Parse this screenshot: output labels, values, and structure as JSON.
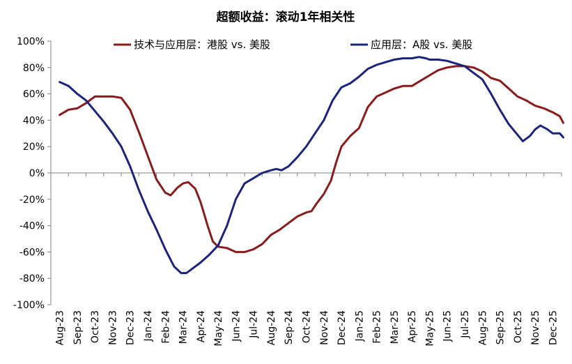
{
  "chart_data": {
    "type": "line",
    "title": "超额收益：滚动1年相关性",
    "xlabel": "",
    "ylabel": "",
    "ylim": [
      -100,
      100
    ],
    "yticks": [
      "100%",
      "80%",
      "60%",
      "40%",
      "20%",
      "0%",
      "-20%",
      "-40%",
      "-60%",
      "-80%",
      "-100%"
    ],
    "ytick_values": [
      100,
      80,
      60,
      40,
      20,
      0,
      -20,
      -40,
      -60,
      -80,
      -100
    ],
    "categories": [
      "Aug-23",
      "Sep-23",
      "Oct-23",
      "Nov-23",
      "Dec-23",
      "Jan-24",
      "Feb-24",
      "Mar-24",
      "Apr-24",
      "May-24",
      "Jun-24",
      "Jul-24",
      "Aug-24",
      "Sep-24",
      "Oct-24",
      "Nov-24",
      "Dec-24",
      "Jan-25",
      "Feb-25",
      "Mar-25",
      "Apr-25",
      "May-25",
      "Jun-25",
      "Jul-25",
      "Aug-25",
      "Sep-25",
      "Oct-25",
      "Nov-25",
      "Dec-25"
    ],
    "legend_position": "top",
    "grid": false,
    "series": [
      {
        "name": "技术与应用层：港股 vs. 美股",
        "color": "#8B1A1A",
        "points": [
          [
            0,
            44
          ],
          [
            0.5,
            48
          ],
          [
            1,
            49
          ],
          [
            1.5,
            53
          ],
          [
            2,
            58
          ],
          [
            2.5,
            58
          ],
          [
            3,
            58
          ],
          [
            3.5,
            57
          ],
          [
            4,
            48
          ],
          [
            4.5,
            31
          ],
          [
            5,
            13
          ],
          [
            5.5,
            -5
          ],
          [
            6,
            -15
          ],
          [
            6.3,
            -17
          ],
          [
            6.7,
            -11
          ],
          [
            7,
            -8
          ],
          [
            7.3,
            -7
          ],
          [
            7.7,
            -12
          ],
          [
            8,
            -22
          ],
          [
            8.4,
            -40
          ],
          [
            8.7,
            -52
          ],
          [
            9,
            -56
          ],
          [
            9.5,
            -57
          ],
          [
            10,
            -60
          ],
          [
            10.5,
            -60
          ],
          [
            11,
            -58
          ],
          [
            11.5,
            -54
          ],
          [
            12,
            -47
          ],
          [
            12.5,
            -43
          ],
          [
            13,
            -38
          ],
          [
            13.5,
            -33
          ],
          [
            14,
            -30
          ],
          [
            14.3,
            -29
          ],
          [
            14.6,
            -23
          ],
          [
            15,
            -16
          ],
          [
            15.4,
            -6
          ],
          [
            15.7,
            8
          ],
          [
            16,
            20
          ],
          [
            16.5,
            28
          ],
          [
            17,
            34
          ],
          [
            17.5,
            50
          ],
          [
            18,
            58
          ],
          [
            18.5,
            61
          ],
          [
            19,
            64
          ],
          [
            19.5,
            66
          ],
          [
            20,
            66
          ],
          [
            20.5,
            70
          ],
          [
            21,
            74
          ],
          [
            21.5,
            78
          ],
          [
            22,
            80
          ],
          [
            22.5,
            81
          ],
          [
            23,
            81
          ],
          [
            23.5,
            80
          ],
          [
            24,
            77
          ],
          [
            24.5,
            72
          ],
          [
            25,
            70
          ],
          [
            25.5,
            64
          ],
          [
            26,
            58
          ],
          [
            26.5,
            55
          ],
          [
            27,
            51
          ],
          [
            27.5,
            49
          ],
          [
            28,
            46
          ],
          [
            28.4,
            43
          ],
          [
            28.6,
            38
          ]
        ]
      },
      {
        "name": "应用层：A股 vs. 美股",
        "color": "#1A237E",
        "points": [
          [
            0,
            69
          ],
          [
            0.5,
            66
          ],
          [
            1,
            60
          ],
          [
            1.5,
            55
          ],
          [
            2,
            47
          ],
          [
            2.5,
            39
          ],
          [
            3,
            30
          ],
          [
            3.5,
            20
          ],
          [
            4,
            5
          ],
          [
            4.5,
            -13
          ],
          [
            5,
            -29
          ],
          [
            5.5,
            -43
          ],
          [
            6,
            -58
          ],
          [
            6.5,
            -71
          ],
          [
            6.9,
            -76
          ],
          [
            7.2,
            -76
          ],
          [
            7.6,
            -72
          ],
          [
            8,
            -68
          ],
          [
            8.5,
            -62
          ],
          [
            9,
            -55
          ],
          [
            9.5,
            -40
          ],
          [
            10,
            -20
          ],
          [
            10.5,
            -8
          ],
          [
            11,
            -4
          ],
          [
            11.5,
            0
          ],
          [
            12,
            2
          ],
          [
            12.3,
            3
          ],
          [
            12.6,
            2
          ],
          [
            13,
            5
          ],
          [
            13.5,
            12
          ],
          [
            14,
            20
          ],
          [
            14.5,
            30
          ],
          [
            15,
            40
          ],
          [
            15.5,
            55
          ],
          [
            16,
            65
          ],
          [
            16.5,
            68
          ],
          [
            17,
            73
          ],
          [
            17.5,
            79
          ],
          [
            18,
            82
          ],
          [
            18.5,
            84
          ],
          [
            19,
            86
          ],
          [
            19.5,
            87
          ],
          [
            20,
            87
          ],
          [
            20.4,
            88
          ],
          [
            20.8,
            87
          ],
          [
            21,
            86
          ],
          [
            21.5,
            86
          ],
          [
            22,
            85
          ],
          [
            22.5,
            83
          ],
          [
            23,
            81
          ],
          [
            23.5,
            76
          ],
          [
            24,
            71
          ],
          [
            24.5,
            60
          ],
          [
            25,
            48
          ],
          [
            25.5,
            37
          ],
          [
            26,
            29
          ],
          [
            26.3,
            24
          ],
          [
            26.7,
            28
          ],
          [
            27,
            33
          ],
          [
            27.3,
            36
          ],
          [
            27.7,
            33
          ],
          [
            28,
            30
          ],
          [
            28.4,
            30
          ],
          [
            28.6,
            27
          ]
        ]
      }
    ]
  }
}
